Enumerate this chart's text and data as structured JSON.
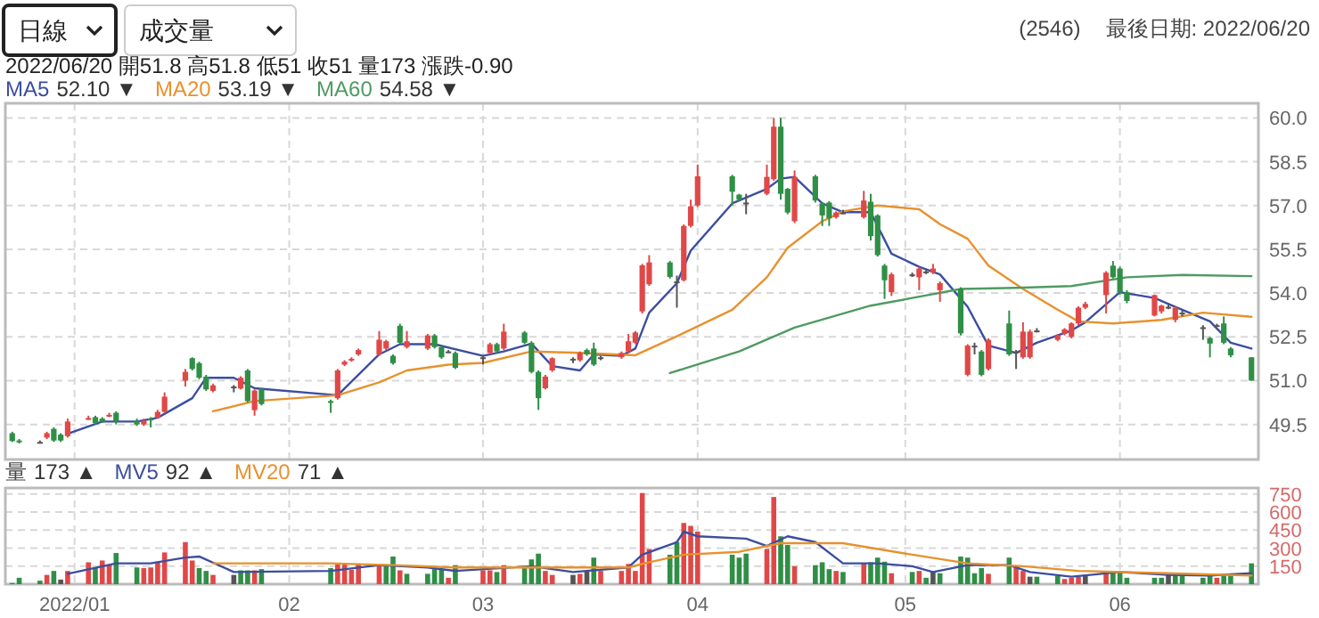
{
  "chart_data": [
    {
      "type": "candlestick",
      "x": [
        "2021-12-23",
        "2021-12-24",
        "2021-12-27",
        "2021-12-28",
        "2021-12-29",
        "2021-12-30",
        "2021-12-31",
        "2022-01-03",
        "2022-01-04",
        "2022-01-05",
        "2022-01-06",
        "2022-01-07",
        "2022-01-10",
        "2022-01-11",
        "2022-01-12",
        "2022-01-13",
        "2022-01-14",
        "2022-01-17",
        "2022-01-18",
        "2022-01-19",
        "2022-01-20",
        "2022-01-21",
        "2022-01-24",
        "2022-01-25",
        "2022-01-26",
        "2022-01-27",
        "2022-01-28",
        "2022-02-07",
        "2022-02-08",
        "2022-02-09",
        "2022-02-10",
        "2022-02-11",
        "2022-02-14",
        "2022-02-15",
        "2022-02-16",
        "2022-02-17",
        "2022-02-18",
        "2022-02-21",
        "2022-02-22",
        "2022-02-23",
        "2022-02-24",
        "2022-02-25",
        "2022-03-01",
        "2022-03-02",
        "2022-03-03",
        "2022-03-04",
        "2022-03-07",
        "2022-03-08",
        "2022-03-09",
        "2022-03-10",
        "2022-03-11",
        "2022-03-14",
        "2022-03-15",
        "2022-03-16",
        "2022-03-17",
        "2022-03-18",
        "2022-03-21",
        "2022-03-22",
        "2022-03-23",
        "2022-03-24",
        "2022-03-25",
        "2022-03-28",
        "2022-03-29",
        "2022-03-30",
        "2022-03-31",
        "2022-04-01",
        "2022-04-06",
        "2022-04-07",
        "2022-04-08",
        "2022-04-11",
        "2022-04-12",
        "2022-04-13",
        "2022-04-14",
        "2022-04-15",
        "2022-04-18",
        "2022-04-19",
        "2022-04-20",
        "2022-04-21",
        "2022-04-22",
        "2022-04-25",
        "2022-04-26",
        "2022-04-27",
        "2022-04-28",
        "2022-04-29",
        "2022-05-02",
        "2022-05-03",
        "2022-05-04",
        "2022-05-05",
        "2022-05-06",
        "2022-05-09",
        "2022-05-10",
        "2022-05-11",
        "2022-05-12",
        "2022-05-13",
        "2022-05-16",
        "2022-05-17",
        "2022-05-18",
        "2022-05-19",
        "2022-05-20",
        "2022-05-23",
        "2022-05-24",
        "2022-05-25",
        "2022-05-26",
        "2022-05-27",
        "2022-05-30",
        "2022-05-31",
        "2022-06-01",
        "2022-06-02",
        "2022-06-06",
        "2022-06-07",
        "2022-06-08",
        "2022-06-09",
        "2022-06-10",
        "2022-06-13",
        "2022-06-14",
        "2022-06-15",
        "2022-06-16",
        "2022-06-17",
        "2022-06-20"
      ],
      "ohlc": [
        [
          49.2,
          49.25,
          48.9,
          48.93
        ],
        [
          48.95,
          49.0,
          48.85,
          48.9
        ],
        [
          48.9,
          48.95,
          48.85,
          48.9
        ],
        [
          49.05,
          49.25,
          49.0,
          49.2
        ],
        [
          49.35,
          49.4,
          48.9,
          48.95
        ],
        [
          49.15,
          49.2,
          48.9,
          48.95
        ],
        [
          49.1,
          49.7,
          49.05,
          49.6
        ],
        [
          49.7,
          49.8,
          49.65,
          49.72
        ],
        [
          49.75,
          49.8,
          49.5,
          49.55
        ],
        [
          49.7,
          49.75,
          49.55,
          49.6
        ],
        [
          49.8,
          49.9,
          49.75,
          49.83
        ],
        [
          49.9,
          49.95,
          49.5,
          49.6
        ],
        [
          49.62,
          49.7,
          49.45,
          49.5
        ],
        [
          49.5,
          49.7,
          49.45,
          49.62
        ],
        [
          49.7,
          49.75,
          49.4,
          49.68
        ],
        [
          49.73,
          50.0,
          49.7,
          49.93
        ],
        [
          49.93,
          50.6,
          49.9,
          50.45
        ],
        [
          51.0,
          51.4,
          50.8,
          51.3
        ],
        [
          51.77,
          51.8,
          51.35,
          51.4
        ],
        [
          51.6,
          51.65,
          51.05,
          51.1
        ],
        [
          51.14,
          51.2,
          50.65,
          50.7
        ],
        [
          50.65,
          50.9,
          50.6,
          50.84
        ],
        [
          50.8,
          50.85,
          50.6,
          50.8
        ],
        [
          50.73,
          51.15,
          50.7,
          51.1
        ],
        [
          51.35,
          51.4,
          50.25,
          50.3
        ],
        [
          49.99,
          50.7,
          49.8,
          50.66
        ],
        [
          50.7,
          50.75,
          50.15,
          50.2
        ],
        [
          50.3,
          50.35,
          49.9,
          50.28
        ],
        [
          50.4,
          51.4,
          50.35,
          51.35
        ],
        [
          51.55,
          51.7,
          51.5,
          51.65
        ],
        [
          51.7,
          51.8,
          51.65,
          51.75
        ],
        [
          51.9,
          52.1,
          51.85,
          52.05
        ],
        [
          51.9,
          52.7,
          51.85,
          52.4
        ],
        [
          52.1,
          52.4,
          52.05,
          52.35
        ],
        [
          51.85,
          51.9,
          51.55,
          51.6
        ],
        [
          52.88,
          52.95,
          52.25,
          52.3
        ],
        [
          52.15,
          52.7,
          52.1,
          52.35
        ],
        [
          52.1,
          52.6,
          52.05,
          52.55
        ],
        [
          52.55,
          52.6,
          52.1,
          52.15
        ],
        [
          52.15,
          52.2,
          51.75,
          51.8
        ],
        [
          52.0,
          52.05,
          51.95,
          52.0
        ],
        [
          51.95,
          52.0,
          51.4,
          51.44
        ],
        [
          51.8,
          51.85,
          51.55,
          51.8
        ],
        [
          51.95,
          52.3,
          51.9,
          52.25
        ],
        [
          52.25,
          52.3,
          51.95,
          52.0
        ],
        [
          52.1,
          52.95,
          52.05,
          52.68
        ],
        [
          52.65,
          52.7,
          52.25,
          52.3
        ],
        [
          52.3,
          52.35,
          51.25,
          51.3
        ],
        [
          51.3,
          51.35,
          50.0,
          50.4
        ],
        [
          50.74,
          51.2,
          50.7,
          51.14
        ],
        [
          51.35,
          51.8,
          51.3,
          51.77
        ],
        [
          51.75,
          51.8,
          51.6,
          51.75
        ],
        [
          51.7,
          52.0,
          51.65,
          51.95
        ],
        [
          52.05,
          52.1,
          51.85,
          51.9
        ],
        [
          52.1,
          52.3,
          51.5,
          51.55
        ],
        [
          51.8,
          51.85,
          51.7,
          51.8
        ],
        [
          51.8,
          52.0,
          51.75,
          51.95
        ],
        [
          52.0,
          52.6,
          51.95,
          52.35
        ],
        [
          52.3,
          52.7,
          52.25,
          52.65
        ],
        [
          53.37,
          55.0,
          53.3,
          54.95
        ],
        [
          54.3,
          55.3,
          54.25,
          55.05
        ],
        [
          55.05,
          55.1,
          54.5,
          54.55
        ],
        [
          54.4,
          54.6,
          53.5,
          54.4
        ],
        [
          54.44,
          56.35,
          54.4,
          56.3
        ],
        [
          56.3,
          57.2,
          56.25,
          56.97
        ],
        [
          57.0,
          58.4,
          56.95,
          58.0
        ],
        [
          58.0,
          58.05,
          57.0,
          57.47
        ],
        [
          57.37,
          57.4,
          57.15,
          57.2
        ],
        [
          57.1,
          57.4,
          56.7,
          57.1
        ],
        [
          57.4,
          58.4,
          57.35,
          57.98
        ],
        [
          57.9,
          60.0,
          57.85,
          59.7
        ],
        [
          59.7,
          60.0,
          57.2,
          57.4
        ],
        [
          57.57,
          57.6,
          56.7,
          56.76
        ],
        [
          56.46,
          58.2,
          56.4,
          57.98
        ],
        [
          58.0,
          58.05,
          57.1,
          57.17
        ],
        [
          57.07,
          57.1,
          56.3,
          56.66
        ],
        [
          57.1,
          57.15,
          56.3,
          56.56
        ],
        [
          56.6,
          56.8,
          56.55,
          56.76
        ],
        [
          56.76,
          56.85,
          56.7,
          56.76
        ],
        [
          56.6,
          57.5,
          56.55,
          57.17
        ],
        [
          57.13,
          57.4,
          55.8,
          55.95
        ],
        [
          56.66,
          56.7,
          55.25,
          55.3
        ],
        [
          54.94,
          55.0,
          53.8,
          54.44
        ],
        [
          54.03,
          54.7,
          53.9,
          54.64
        ],
        [
          54.64,
          54.7,
          54.55,
          54.64
        ],
        [
          54.54,
          54.9,
          54.1,
          54.84
        ],
        [
          54.74,
          54.8,
          54.65,
          54.74
        ],
        [
          54.7,
          55.0,
          54.65,
          54.84
        ],
        [
          54.1,
          54.4,
          53.7,
          54.34
        ],
        [
          54.14,
          54.2,
          52.55,
          52.62
        ],
        [
          51.2,
          52.25,
          51.15,
          52.2
        ],
        [
          52.2,
          52.3,
          51.9,
          52.2
        ],
        [
          52.0,
          52.05,
          51.15,
          51.2
        ],
        [
          51.4,
          52.45,
          51.35,
          52.4
        ],
        [
          52.96,
          53.4,
          51.85,
          51.9
        ],
        [
          52.0,
          52.05,
          51.4,
          52.0
        ],
        [
          51.8,
          53.0,
          51.75,
          52.68
        ],
        [
          51.8,
          52.75,
          51.75,
          52.68
        ],
        [
          52.72,
          52.8,
          52.65,
          52.72
        ],
        [
          52.4,
          52.6,
          52.35,
          52.55
        ],
        [
          52.6,
          52.8,
          52.55,
          52.76
        ],
        [
          52.5,
          53.0,
          52.45,
          52.96
        ],
        [
          52.96,
          53.55,
          52.9,
          53.5
        ],
        [
          53.5,
          53.7,
          53.45,
          53.63
        ],
        [
          53.93,
          54.75,
          53.3,
          54.7
        ],
        [
          54.94,
          55.1,
          54.5,
          54.54
        ],
        [
          54.84,
          54.9,
          53.95,
          54.03
        ],
        [
          54.03,
          54.1,
          53.65,
          53.73
        ],
        [
          53.23,
          53.95,
          53.2,
          53.93
        ],
        [
          53.37,
          53.6,
          53.3,
          53.57
        ],
        [
          53.53,
          53.6,
          53.45,
          53.53
        ],
        [
          53.08,
          53.55,
          53.0,
          53.5
        ],
        [
          53.33,
          53.4,
          53.2,
          53.33
        ],
        [
          52.83,
          52.9,
          52.4,
          52.83
        ],
        [
          52.46,
          52.5,
          51.8,
          52.27
        ],
        [
          52.9,
          52.95,
          52.85,
          52.9
        ],
        [
          52.96,
          53.2,
          52.25,
          52.3
        ],
        [
          52.1,
          52.15,
          51.8,
          51.87
        ],
        [
          51.8,
          51.8,
          51,
          51
        ]
      ],
      "series": [
        {
          "name": "MA5",
          "type": "line",
          "color": "#3c4ea0",
          "x": [
            "2021-12-31",
            "2022-01-05",
            "2022-01-10",
            "2022-01-13",
            "2022-01-18",
            "2022-01-20",
            "2022-01-24",
            "2022-01-27",
            "2022-02-08",
            "2022-02-14",
            "2022-02-17",
            "2022-02-22",
            "2022-03-01",
            "2022-03-04",
            "2022-03-08",
            "2022-03-11",
            "2022-03-15",
            "2022-03-17",
            "2022-03-21",
            "2022-03-23",
            "2022-03-25",
            "2022-03-29",
            "2022-03-31",
            "2022-04-06",
            "2022-04-11",
            "2022-04-13",
            "2022-04-15",
            "2022-04-19",
            "2022-04-22",
            "2022-04-26",
            "2022-04-29",
            "2022-05-03",
            "2022-05-06",
            "2022-05-10",
            "2022-05-13",
            "2022-05-17",
            "2022-05-20",
            "2022-05-25",
            "2022-05-27",
            "2022-06-01",
            "2022-06-06",
            "2022-06-09",
            "2022-06-14",
            "2022-06-17",
            "2022-06-20"
          ],
          "values": [
            49.18,
            49.6,
            49.6,
            49.73,
            50.4,
            51.1,
            51.1,
            50.74,
            50.5,
            51.9,
            52.25,
            52.25,
            51.85,
            52.0,
            52.27,
            51.5,
            51.35,
            51.9,
            51.85,
            52.1,
            53.33,
            54.34,
            55.45,
            57.07,
            57.57,
            57.92,
            57.98,
            57.07,
            56.77,
            56.77,
            55.35,
            54.9,
            54.64,
            53.53,
            52.2,
            51.95,
            52.3,
            52.72,
            53.0,
            54.03,
            53.83,
            53.53,
            53.03,
            52.3,
            52.1
          ]
        },
        {
          "name": "MA20",
          "type": "line",
          "color": "#e8912d",
          "x": [
            "2022-01-21",
            "2022-01-27",
            "2022-02-08",
            "2022-02-14",
            "2022-02-18",
            "2022-02-24",
            "2022-03-01",
            "2022-03-08",
            "2022-03-15",
            "2022-03-23",
            "2022-03-29",
            "2022-04-06",
            "2022-04-11",
            "2022-04-14",
            "2022-04-19",
            "2022-04-22",
            "2022-04-27",
            "2022-05-03",
            "2022-05-06",
            "2022-05-10",
            "2022-05-13",
            "2022-05-18",
            "2022-05-23",
            "2022-05-26",
            "2022-05-31",
            "2022-06-07",
            "2022-06-13",
            "2022-06-20"
          ],
          "values": [
            49.95,
            50.3,
            50.5,
            50.94,
            51.35,
            51.55,
            51.61,
            52.0,
            51.95,
            51.87,
            52.52,
            53.43,
            54.54,
            55.55,
            56.46,
            56.8,
            57.0,
            56.87,
            56.36,
            55.86,
            54.94,
            54.14,
            53.43,
            53.03,
            52.96,
            53.08,
            53.33,
            53.19
          ]
        },
        {
          "name": "MA60",
          "type": "line",
          "color": "#4f9a62",
          "x": [
            "2022-03-28",
            "2022-04-07",
            "2022-04-15",
            "2022-04-26",
            "2022-05-02",
            "2022-05-09",
            "2022-05-17",
            "2022-05-25",
            "2022-06-02",
            "2022-06-10",
            "2022-06-20"
          ],
          "values": [
            51.26,
            52.0,
            52.82,
            53.57,
            53.83,
            54.14,
            54.18,
            54.24,
            54.54,
            54.62,
            54.58
          ]
        }
      ],
      "xlim": [
        "2021-12-22",
        "2022-06-21"
      ],
      "xticks": [
        {
          "value": "2022-01-01",
          "label": null
        },
        {
          "value": "2022-02-01",
          "label": null
        },
        {
          "value": "2022-03-01",
          "label": null
        },
        {
          "value": "2022-04-01",
          "label": null
        },
        {
          "value": "2022-05-01",
          "label": null
        },
        {
          "value": "2022-06-01",
          "label": null
        }
      ],
      "ylim": [
        48.3,
        60.5
      ],
      "yticks": [
        49.5,
        {
          "value": 51,
          "label": "51.0"
        },
        52.5,
        {
          "value": 54,
          "label": "54.0"
        },
        55.5,
        {
          "value": 57,
          "label": "57.0"
        },
        58.5,
        {
          "value": 60,
          "label": "60.0"
        }
      ],
      "tick_labels": "y",
      "grid": true,
      "legend": "top left",
      "annotations": [
        "日線",
        "成交量",
        "(2546)",
        "最後日期: 2022/06/20",
        "2022/06/20 開51.8 高51.8 低51 收51 量173 漲跌-0.90",
        "52.10 ▼",
        "53.19 ▼",
        "54.58 ▼"
      ]
    },
    {
      "type": "bar",
      "x": [
        "2021-12-23",
        "2021-12-24",
        "2021-12-27",
        "2021-12-28",
        "2021-12-29",
        "2021-12-30",
        "2021-12-31",
        "2022-01-03",
        "2022-01-04",
        "2022-01-05",
        "2022-01-06",
        "2022-01-07",
        "2022-01-10",
        "2022-01-11",
        "2022-01-12",
        "2022-01-13",
        "2022-01-14",
        "2022-01-17",
        "2022-01-18",
        "2022-01-19",
        "2022-01-20",
        "2022-01-21",
        "2022-01-24",
        "2022-01-25",
        "2022-01-26",
        "2022-01-27",
        "2022-01-28",
        "2022-02-07",
        "2022-02-08",
        "2022-02-09",
        "2022-02-10",
        "2022-02-11",
        "2022-02-14",
        "2022-02-15",
        "2022-02-16",
        "2022-02-17",
        "2022-02-18",
        "2022-02-21",
        "2022-02-22",
        "2022-02-23",
        "2022-02-24",
        "2022-02-25",
        "2022-03-01",
        "2022-03-02",
        "2022-03-03",
        "2022-03-04",
        "2022-03-07",
        "2022-03-08",
        "2022-03-09",
        "2022-03-10",
        "2022-03-11",
        "2022-03-14",
        "2022-03-15",
        "2022-03-16",
        "2022-03-17",
        "2022-03-18",
        "2022-03-21",
        "2022-03-22",
        "2022-03-23",
        "2022-03-24",
        "2022-03-25",
        "2022-03-28",
        "2022-03-29",
        "2022-03-30",
        "2022-03-31",
        "2022-04-01",
        "2022-04-06",
        "2022-04-07",
        "2022-04-08",
        "2022-04-11",
        "2022-04-12",
        "2022-04-13",
        "2022-04-14",
        "2022-04-15",
        "2022-04-18",
        "2022-04-19",
        "2022-04-20",
        "2022-04-21",
        "2022-04-22",
        "2022-04-25",
        "2022-04-26",
        "2022-04-27",
        "2022-04-28",
        "2022-04-29",
        "2022-05-02",
        "2022-05-03",
        "2022-05-04",
        "2022-05-05",
        "2022-05-06",
        "2022-05-09",
        "2022-05-10",
        "2022-05-11",
        "2022-05-12",
        "2022-05-13",
        "2022-05-16",
        "2022-05-17",
        "2022-05-18",
        "2022-05-19",
        "2022-05-20",
        "2022-05-23",
        "2022-05-24",
        "2022-05-25",
        "2022-05-26",
        "2022-05-27",
        "2022-05-30",
        "2022-05-31",
        "2022-06-01",
        "2022-06-02",
        "2022-06-06",
        "2022-06-07",
        "2022-06-08",
        "2022-06-09",
        "2022-06-10",
        "2022-06-13",
        "2022-06-14",
        "2022-06-15",
        "2022-06-16",
        "2022-06-17",
        "2022-06-20"
      ],
      "series": [
        {
          "name": "量",
          "values": [
            10,
            53,
            29,
            77,
            110,
            38,
            110,
            182,
            134,
            197,
            163,
            259,
            139,
            134,
            139,
            187,
            264,
            350,
            197,
            134,
            110,
            77,
            77,
            115,
            115,
            115,
            125,
            134,
            163,
            163,
            120,
            163,
            163,
            158,
            230,
            115,
            86,
            86,
            125,
            125,
            53,
            158,
            115,
            115,
            101,
            158,
            149,
            206,
            254,
            110,
            77,
            77,
            86,
            110,
            221,
            110,
            110,
            168,
            110,
            758,
            293,
            245,
            350,
            509,
            485,
            437,
            245,
            221,
            254,
            293,
            725,
            398,
            326,
            149,
            158,
            182,
            125,
            110,
            101,
            173,
            182,
            221,
            187,
            91,
            101,
            110,
            53,
            101,
            91,
            230,
            221,
            91,
            134,
            86,
            221,
            149,
            110,
            62,
            62,
            67,
            43,
            53,
            62,
            77,
            91,
            91,
            110,
            53,
            53,
            53,
            86,
            86,
            86,
            53,
            86,
            53,
            77,
            77,
            173
          ],
          "colors": [
            "#2f8f46",
            "#2f8f46",
            "#2f8f46",
            "#e04848",
            "#2f8f46",
            "#555555",
            "#e04848",
            "#e04848",
            "#2f8f46",
            "#e04848",
            "#e04848",
            "#2f8f46",
            "#2f8f46",
            "#e04848",
            "#e04848",
            "#e04848",
            "#e04848",
            "#e04848",
            "#e04848",
            "#2f8f46",
            "#2f8f46",
            "#e04848",
            "#555555",
            "#2f8f46",
            "#2f8f46",
            "#e04848",
            "#2f8f46",
            "#2f8f46",
            "#e04848",
            "#e04848",
            "#e04848",
            "#e04848",
            "#e04848",
            "#2f8f46",
            "#2f8f46",
            "#e04848",
            "#2f8f46",
            "#2f8f46",
            "#2f8f46",
            "#2f8f46",
            "#e04848",
            "#2f8f46",
            "#e04848",
            "#e04848",
            "#2f8f46",
            "#e04848",
            "#2f8f46",
            "#2f8f46",
            "#2f8f46",
            "#e04848",
            "#e04848",
            "#555555",
            "#e04848",
            "#555555",
            "#2f8f46",
            "#e04848",
            "#e04848",
            "#e04848",
            "#e04848",
            "#e04848",
            "#e04848",
            "#2f8f46",
            "#2f8f46",
            "#e04848",
            "#e04848",
            "#e04848",
            "#2f8f46",
            "#2f8f46",
            "#2f8f46",
            "#e04848",
            "#e04848",
            "#2f8f46",
            "#2f8f46",
            "#e04848",
            "#2f8f46",
            "#2f8f46",
            "#2f8f46",
            "#e04848",
            "#2f8f46",
            "#e04848",
            "#2f8f46",
            "#2f8f46",
            "#2f8f46",
            "#e04848",
            "#2f8f46",
            "#e04848",
            "#2f8f46",
            "#555555",
            "#2f8f46",
            "#2f8f46",
            "#2f8f46",
            "#2f8f46",
            "#2f8f46",
            "#e04848",
            "#2f8f46",
            "#e04848",
            "#e04848",
            "#555555",
            "#2f8f46",
            "#2f8f46",
            "#e04848",
            "#e04848",
            "#e04848",
            "#555555",
            "#e04848",
            "#2f8f46",
            "#2f8f46",
            "#2f8f46",
            "#2f8f46",
            "#2f8f46",
            "#555555",
            "#2f8f46",
            "#2f8f46",
            "#2f8f46",
            "#2f8f46",
            "#e04848",
            "#2f8f46",
            "#2f8f46",
            "#2f8f46"
          ]
        },
        {
          "name": "MV5",
          "type": "line",
          "color": "#3c4ea0",
          "x": [
            "2021-12-31",
            "2022-01-07",
            "2022-01-12",
            "2022-01-17",
            "2022-01-19",
            "2022-01-24",
            "2022-02-07",
            "2022-02-14",
            "2022-02-21",
            "2022-02-25",
            "2022-03-08",
            "2022-03-14",
            "2022-03-22",
            "2022-03-24",
            "2022-03-29",
            "2022-03-30",
            "2022-04-01",
            "2022-04-08",
            "2022-04-11",
            "2022-04-14",
            "2022-04-18",
            "2022-04-22",
            "2022-04-27",
            "2022-05-02",
            "2022-05-05",
            "2022-05-10",
            "2022-05-16",
            "2022-05-19",
            "2022-05-25",
            "2022-06-01",
            "2022-06-08",
            "2022-06-14",
            "2022-06-20"
          ],
          "values": [
            86,
            173,
            173,
            221,
            230,
            101,
            110,
            158,
            139,
            110,
            149,
            101,
            139,
            245,
            350,
            437,
            398,
            379,
            317,
            398,
            350,
            173,
            173,
            149,
            101,
            158,
            158,
            101,
            62,
            101,
            77,
            72,
            92
          ]
        },
        {
          "name": "MV20",
          "type": "line",
          "color": "#e8912d",
          "x": [
            "2022-01-21",
            "2022-02-07",
            "2022-02-16",
            "2022-02-25",
            "2022-03-10",
            "2022-03-22",
            "2022-03-25",
            "2022-03-30",
            "2022-04-07",
            "2022-04-13",
            "2022-04-22",
            "2022-05-02",
            "2022-05-10",
            "2022-05-18",
            "2022-05-26",
            "2022-06-08",
            "2022-06-20"
          ],
          "values": [
            173,
            173,
            158,
            139,
            139,
            139,
            182,
            245,
            269,
            341,
            341,
            245,
            173,
            149,
            110,
            91,
            71
          ]
        }
      ],
      "xlim": [
        "2021-12-22",
        "2022-06-21"
      ],
      "xticks": [
        {
          "value": "2022-01-01",
          "label": "2022/01"
        },
        {
          "value": "2022-02-01",
          "label": "02"
        },
        {
          "value": "2022-03-01",
          "label": "03"
        },
        {
          "value": "2022-04-01",
          "label": "04"
        },
        {
          "value": "2022-05-01",
          "label": "05"
        },
        {
          "value": "2022-06-01",
          "label": "06"
        }
      ],
      "ylim": [
        0,
        800
      ],
      "yticks": [
        150,
        300,
        450,
        600,
        750
      ],
      "grid": true,
      "legend": "top left",
      "annotations": [
        "173 ▲",
        "92 ▲",
        "71 ▲"
      ]
    }
  ]
}
